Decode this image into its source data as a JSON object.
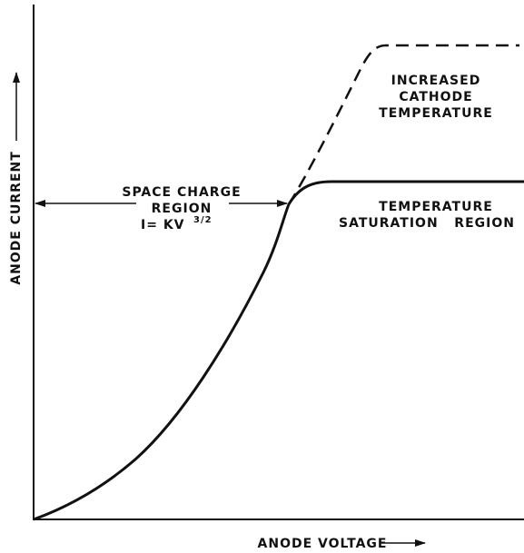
{
  "axes": {
    "y_label": "ANODE CURRENT",
    "x_label": "ANODE VOLTAGE"
  },
  "space_charge": {
    "line1": "SPACE CHARGE",
    "line2": "REGION",
    "formula": "I= KV",
    "exponent": "3/2"
  },
  "increased": {
    "line1": "INCREASED",
    "line2": "CATHODE",
    "line3": "TEMPERATURE"
  },
  "saturation": {
    "line1": "TEMPERATURE",
    "line2": "SATURATION   REGION"
  }
}
